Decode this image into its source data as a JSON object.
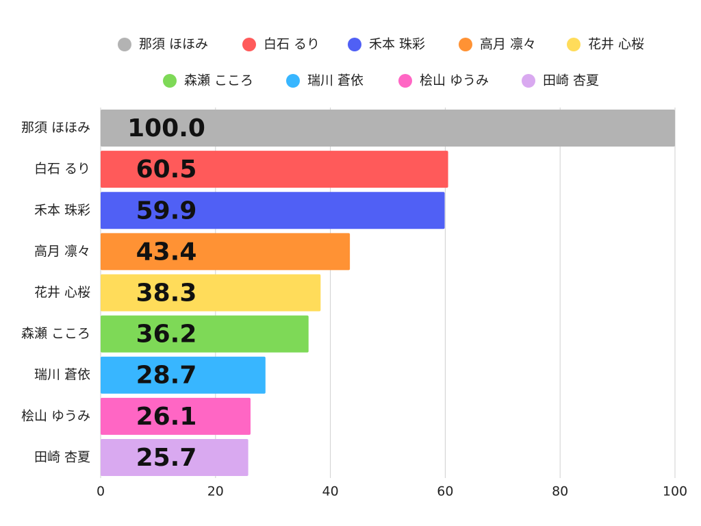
{
  "chart_data": {
    "type": "bar",
    "orientation": "horizontal",
    "categories": [
      "那須 ほほみ",
      "白石 るり",
      "禾本 珠彩",
      "高月 凛々",
      "花井 心桜",
      "森瀬 こころ",
      "瑞川 蒼依",
      "桧山 ゆうみ",
      "田崎 杏夏"
    ],
    "values": [
      100.0,
      60.5,
      59.9,
      43.4,
      38.3,
      36.2,
      28.7,
      26.1,
      25.7
    ],
    "value_labels": [
      "100.0",
      "60.5",
      "59.9",
      "43.4",
      "38.3",
      "36.2",
      "28.7",
      "26.1",
      "25.7"
    ],
    "colors": [
      "#b3b3b3",
      "#ff5a5a",
      "#5060f5",
      "#ff9234",
      "#ffdc5a",
      "#7ed957",
      "#38b6ff",
      "#ff66c4",
      "#d9a9f0"
    ],
    "xlim": [
      0,
      100
    ],
    "xticks": [
      0,
      20,
      40,
      60,
      80,
      100
    ],
    "grid": true,
    "legend": "top"
  }
}
